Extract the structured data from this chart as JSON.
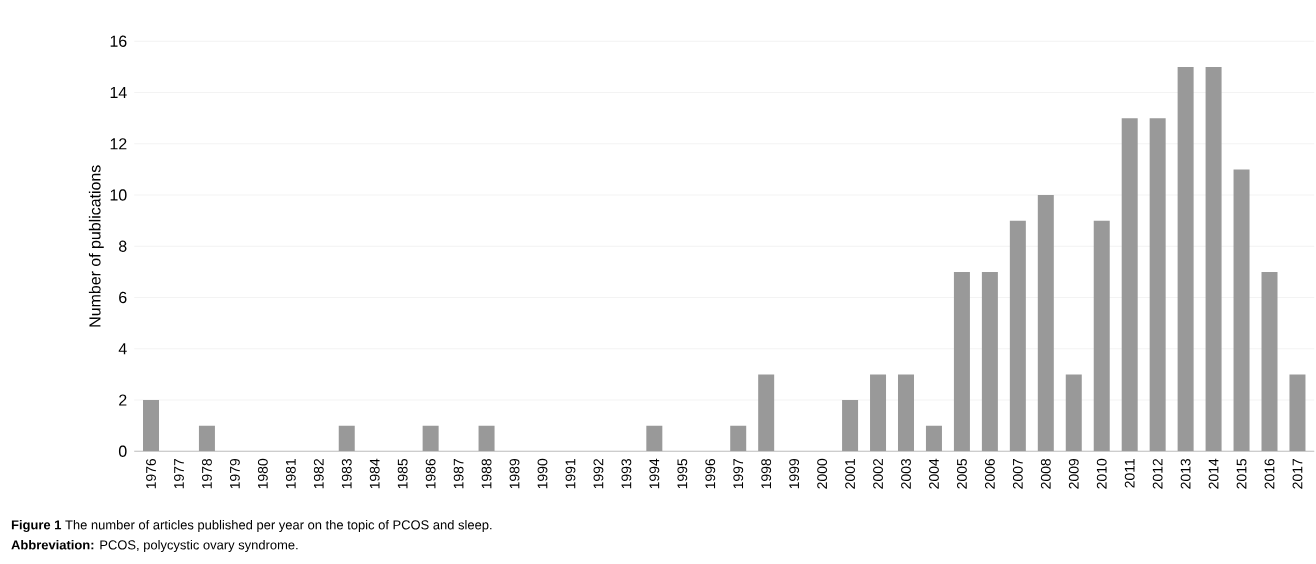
{
  "chart_data": {
    "type": "bar",
    "ylabel": "Number of publications",
    "categories": [
      "1976",
      "1977",
      "1978",
      "1979",
      "1980",
      "1981",
      "1982",
      "1983",
      "1984",
      "1985",
      "1986",
      "1987",
      "1988",
      "1989",
      "1990",
      "1991",
      "1992",
      "1993",
      "1994",
      "1995",
      "1996",
      "1997",
      "1998",
      "1999",
      "2000",
      "2001",
      "2002",
      "2003",
      "2004",
      "2005",
      "2006",
      "2007",
      "2008",
      "2009",
      "2010",
      "2011",
      "2012",
      "2013",
      "2014",
      "2015",
      "2016",
      "2017"
    ],
    "values": [
      2,
      0,
      1,
      0,
      0,
      0,
      0,
      1,
      0,
      0,
      1,
      0,
      1,
      0,
      0,
      0,
      0,
      0,
      1,
      0,
      0,
      1,
      3,
      0,
      0,
      2,
      3,
      3,
      1,
      7,
      7,
      9,
      10,
      3,
      9,
      13,
      13,
      15,
      15,
      11,
      7,
      3
    ],
    "color": "#999999",
    "ylim": [
      0,
      16
    ],
    "yticks": [
      0,
      2,
      4,
      6,
      8,
      10,
      12,
      14,
      16
    ],
    "grid": "y",
    "annotations": [
      "**Figure 1** The number of articles published per year on the topic of PCOS and sleep.",
      "**Abbreviation:** PCOS, polycystic ovary syndrome."
    ]
  }
}
